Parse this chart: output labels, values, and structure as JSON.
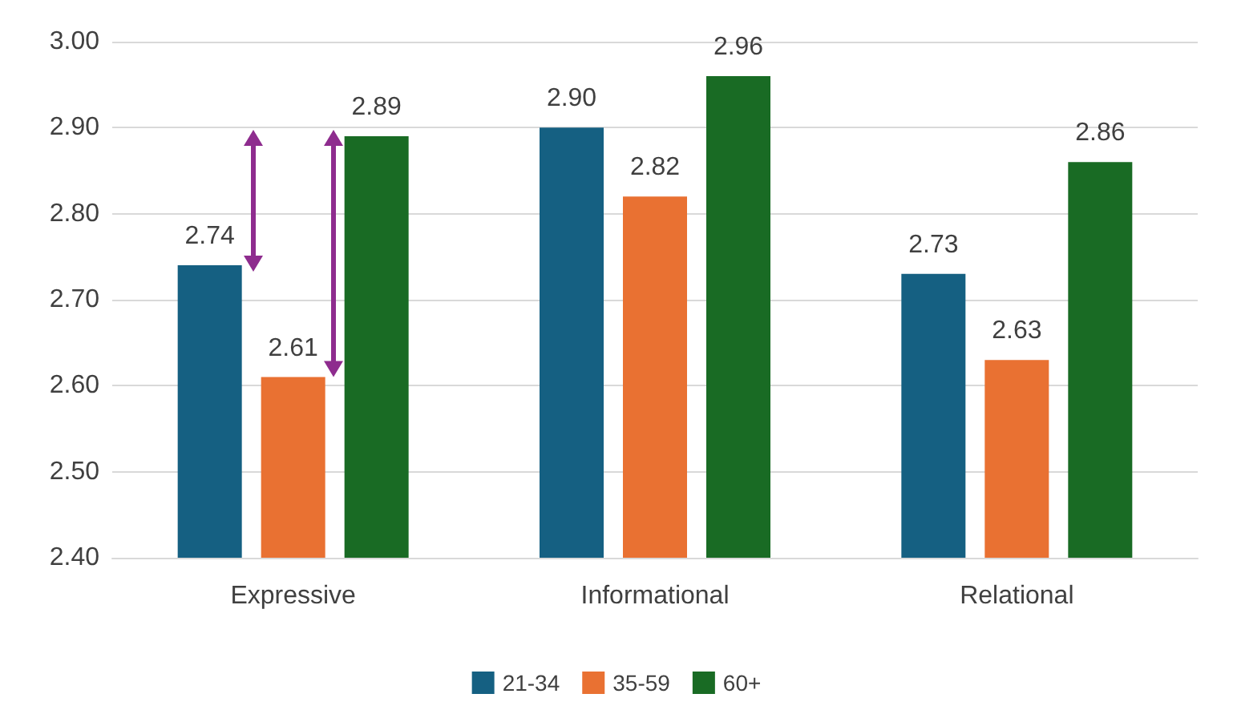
{
  "chart_data": {
    "type": "bar",
    "categories": [
      "Expressive",
      "Informational",
      "Relational"
    ],
    "series": [
      {
        "name": "21-34",
        "color": "#156082",
        "values": [
          2.74,
          2.9,
          2.73
        ],
        "value_labels": [
          "2.74",
          "2.90",
          "2.73"
        ]
      },
      {
        "name": "35-59",
        "color": "#e97132",
        "values": [
          2.61,
          2.82,
          2.63
        ],
        "value_labels": [
          "2.61",
          "2.82",
          "2.63"
        ]
      },
      {
        "name": "60+",
        "color": "#196b24",
        "values": [
          2.89,
          2.96,
          2.86
        ],
        "value_labels": [
          "2.89",
          "2.96",
          "2.86"
        ]
      }
    ],
    "ylim": [
      2.4,
      3.0
    ],
    "yticks": [
      {
        "value": 2.4,
        "label": "2.40"
      },
      {
        "value": 2.5,
        "label": "2.50"
      },
      {
        "value": 2.6,
        "label": "2.60"
      },
      {
        "value": 2.7,
        "label": "2.70"
      },
      {
        "value": 2.8,
        "label": "2.80"
      },
      {
        "value": 2.9,
        "label": "2.90"
      },
      {
        "value": 3.0,
        "label": "3.00"
      }
    ],
    "grid": true,
    "legend": "bottom"
  }
}
